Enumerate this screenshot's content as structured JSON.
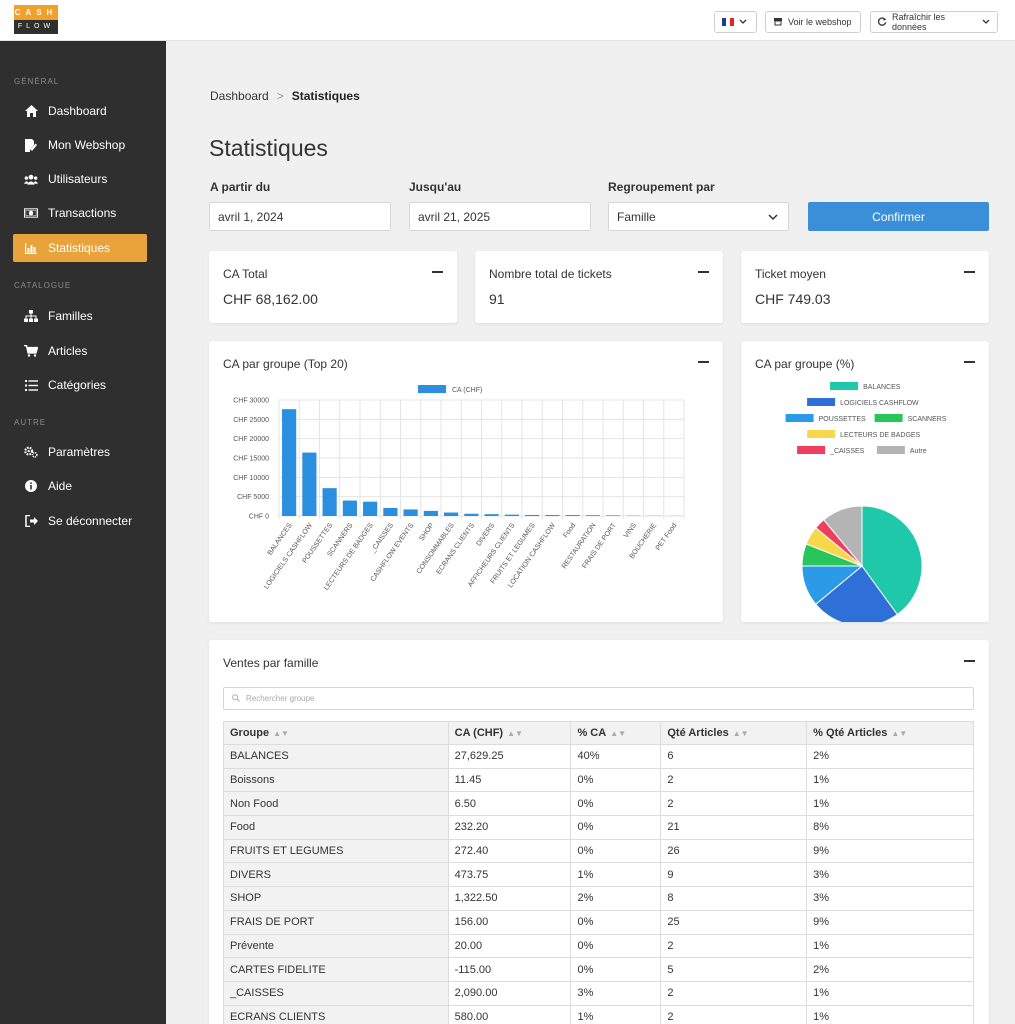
{
  "logo": {
    "top": "CASH",
    "bottom": "FLOW"
  },
  "topbar": {
    "webshop_label": "Voir le webshop",
    "refresh_label": "Rafraîchir les données"
  },
  "sidebar": {
    "sections": [
      "GÉNÉRAL",
      "CATALOGUE",
      "AUTRE"
    ],
    "items": [
      {
        "label": "Dashboard",
        "icon": "home-icon"
      },
      {
        "label": "Mon Webshop",
        "icon": "edit-icon"
      },
      {
        "label": "Utilisateurs",
        "icon": "users-icon"
      },
      {
        "label": "Transactions",
        "icon": "money-icon"
      },
      {
        "label": "Statistiques",
        "icon": "bar-chart-icon"
      },
      {
        "label": "Familles",
        "icon": "sitemap-icon"
      },
      {
        "label": "Articles",
        "icon": "cart-icon"
      },
      {
        "label": "Catégories",
        "icon": "list-icon"
      },
      {
        "label": "Paramètres",
        "icon": "gears-icon"
      },
      {
        "label": "Aide",
        "icon": "info-icon"
      },
      {
        "label": "Se déconnecter",
        "icon": "logout-icon"
      }
    ]
  },
  "breadcrumb": {
    "home": "Dashboard",
    "sep": ">",
    "current": "Statistiques"
  },
  "page_title": "Statistiques",
  "filters": {
    "from_label": "A partir du",
    "from_value": "avril 1, 2024",
    "to_label": "Jusqu'au",
    "to_value": "avril 21, 2025",
    "group_label": "Regroupement par",
    "group_value": "Famille",
    "confirm_label": "Confirmer"
  },
  "kpis": [
    {
      "title": "CA Total",
      "value": "CHF 68,162.00"
    },
    {
      "title": "Nombre total de tickets",
      "value": "91"
    },
    {
      "title": "Ticket moyen",
      "value": "CHF 749.03"
    }
  ],
  "bar_card_title": "CA par groupe (Top 20)",
  "pie_card_title": "CA par groupe (%)",
  "chart_data": [
    {
      "type": "bar",
      "legend": [
        "CA (CHF)"
      ],
      "color": "#2b8fe0",
      "ylim": [
        0,
        30000
      ],
      "yticks": [
        "CHF 0",
        "CHF 5000",
        "CHF 10000",
        "CHF 15000",
        "CHF 20000",
        "CHF 25000",
        "CHF 30000"
      ],
      "categories": [
        "BALANCES",
        "LOGICIELS CASHFLOW",
        "POUSSETTES",
        "SCANNERS",
        "LECTEURS DE BADGES",
        "_CAISSES",
        "CASHFLOW EVENTS",
        "SHOP",
        "CONSOMMABLES",
        "ECRANS CLIENTS",
        "DIVERS",
        "AFFICHEURS CLIENTS",
        "FRUITS ET LEGUMES",
        "LOCATION CASHFLOW",
        "Food",
        "RESTAURATION",
        "FRAIS DE PORT",
        "VINS",
        "BOUCHERIE",
        "PET Food"
      ],
      "values": [
        27629.25,
        16400,
        7200,
        4000,
        3700,
        2090,
        1700,
        1322.5,
        900,
        580,
        473.75,
        350,
        272.4,
        250,
        232.2,
        200,
        156,
        80,
        50,
        30
      ]
    },
    {
      "type": "pie",
      "legend": [
        "BALANCES",
        "LOGICIELS CASHFLOW",
        "POUSSETTES",
        "SCANNERS",
        "LECTEURS DE BADGES",
        "_CAISSES",
        "Autre"
      ],
      "values": [
        40,
        24,
        11,
        6,
        5,
        3,
        11
      ],
      "colors": [
        "#1fc8a8",
        "#2f6fd8",
        "#2b9be8",
        "#28c55a",
        "#f7d84a",
        "#ee3f5f",
        "#b4b4b4"
      ]
    }
  ],
  "table_card": {
    "title": "Ventes par famille",
    "search_placeholder": "Rechercher groupe",
    "columns": [
      "Groupe",
      "CA (CHF)",
      "% CA",
      "Qté Articles",
      "% Qté Articles"
    ],
    "rows": [
      [
        "BALANCES",
        "27,629.25",
        "40%",
        "6",
        "2%"
      ],
      [
        "Boissons",
        "11.45",
        "0%",
        "2",
        "1%"
      ],
      [
        "Non Food",
        "6.50",
        "0%",
        "2",
        "1%"
      ],
      [
        "Food",
        "232.20",
        "0%",
        "21",
        "8%"
      ],
      [
        "FRUITS ET LEGUMES",
        "272.40",
        "0%",
        "26",
        "9%"
      ],
      [
        "DIVERS",
        "473.75",
        "1%",
        "9",
        "3%"
      ],
      [
        "SHOP",
        "1,322.50",
        "2%",
        "8",
        "3%"
      ],
      [
        "FRAIS DE PORT",
        "156.00",
        "0%",
        "25",
        "9%"
      ],
      [
        "Prévente",
        "20.00",
        "0%",
        "2",
        "1%"
      ],
      [
        "CARTES FIDELITE",
        "-115.00",
        "0%",
        "5",
        "2%"
      ],
      [
        "_CAISSES",
        "2,090.00",
        "3%",
        "2",
        "1%"
      ],
      [
        "ECRANS CLIENTS",
        "580.00",
        "1%",
        "2",
        "1%"
      ]
    ]
  }
}
